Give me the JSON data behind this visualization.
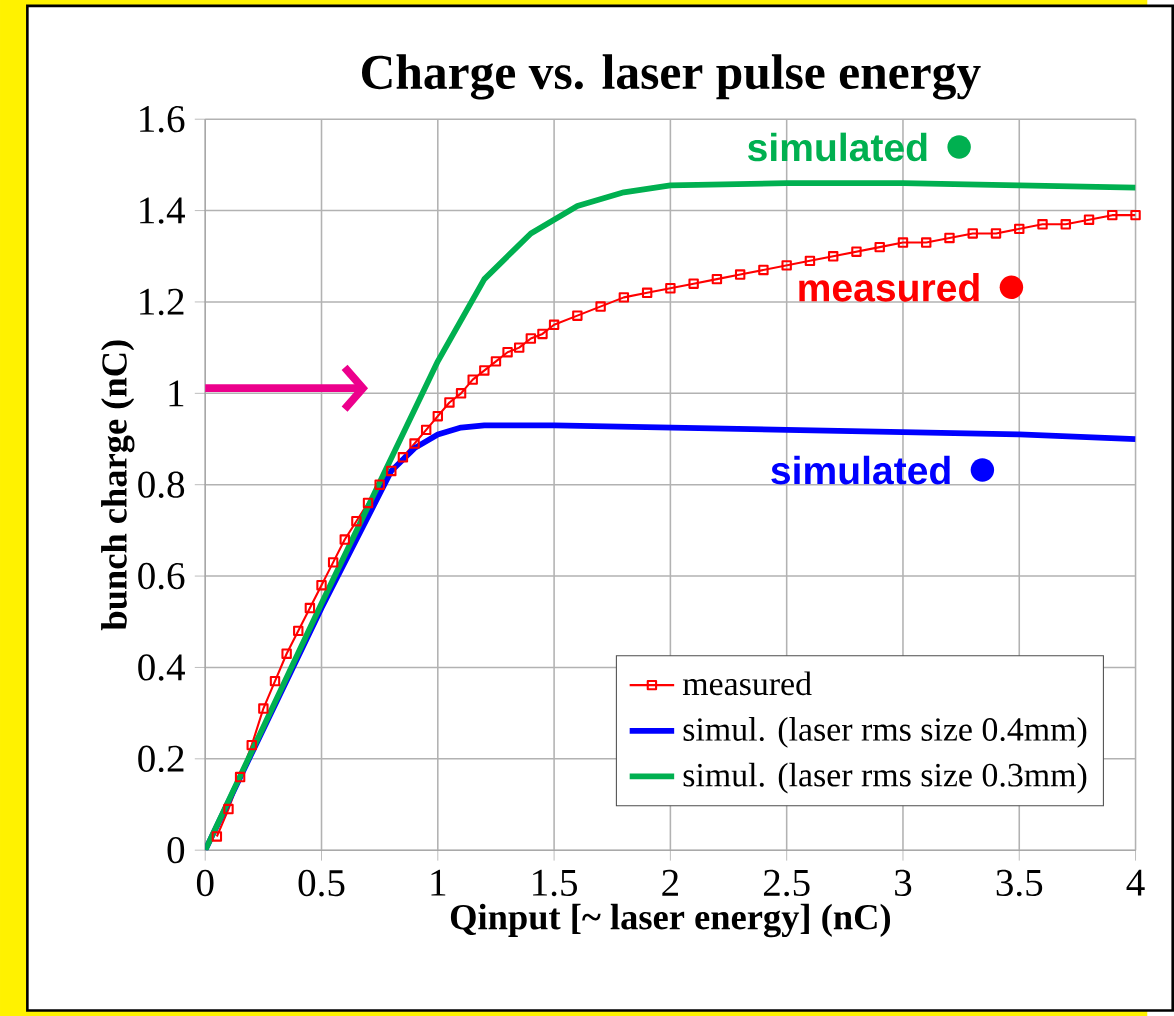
{
  "chart_data": {
    "type": "line",
    "title": "Charge vs. laser pulse energy",
    "xlabel": "Qinput [~ laser energy] (nC)",
    "ylabel": "bunch charge (nC)",
    "xlim": [
      0,
      4
    ],
    "ylim": [
      0,
      1.6
    ],
    "xticks": [
      0,
      0.5,
      1,
      1.5,
      2,
      2.5,
      3,
      3.5,
      4
    ],
    "yticks": [
      0,
      0.2,
      0.4,
      0.6,
      0.8,
      1,
      1.2,
      1.4,
      1.6
    ],
    "grid": true,
    "legend": "bottom right",
    "series": [
      {
        "name": "measured",
        "color": "#ff0000",
        "marker": "square",
        "x": [
          0.05,
          0.1,
          0.15,
          0.2,
          0.25,
          0.3,
          0.35,
          0.4,
          0.45,
          0.5,
          0.55,
          0.6,
          0.65,
          0.7,
          0.75,
          0.8,
          0.85,
          0.9,
          0.95,
          1.0,
          1.05,
          1.1,
          1.15,
          1.2,
          1.25,
          1.3,
          1.35,
          1.4,
          1.45,
          1.5,
          1.6,
          1.7,
          1.8,
          1.9,
          2.0,
          2.1,
          2.2,
          2.3,
          2.4,
          2.5,
          2.6,
          2.7,
          2.8,
          2.9,
          3.0,
          3.1,
          3.2,
          3.3,
          3.4,
          3.5,
          3.6,
          3.7,
          3.8,
          3.9,
          4.0
        ],
        "values": [
          0.03,
          0.09,
          0.16,
          0.23,
          0.31,
          0.37,
          0.43,
          0.48,
          0.53,
          0.58,
          0.63,
          0.68,
          0.72,
          0.76,
          0.8,
          0.83,
          0.86,
          0.89,
          0.92,
          0.95,
          0.98,
          1.0,
          1.03,
          1.05,
          1.07,
          1.09,
          1.1,
          1.12,
          1.13,
          1.15,
          1.17,
          1.19,
          1.21,
          1.22,
          1.23,
          1.24,
          1.25,
          1.26,
          1.27,
          1.28,
          1.29,
          1.3,
          1.31,
          1.32,
          1.33,
          1.33,
          1.34,
          1.35,
          1.35,
          1.36,
          1.37,
          1.37,
          1.38,
          1.39,
          1.39
        ]
      },
      {
        "name": "simul. (laser rms size 0.4mm)",
        "color": "#0000ff",
        "x": [
          0,
          0.5,
          0.8,
          0.9,
          1.0,
          1.1,
          1.2,
          1.3,
          1.5,
          2.0,
          2.5,
          3.0,
          3.5,
          4.0
        ],
        "values": [
          0,
          0.53,
          0.83,
          0.88,
          0.91,
          0.925,
          0.93,
          0.93,
          0.93,
          0.925,
          0.92,
          0.915,
          0.91,
          0.9
        ]
      },
      {
        "name": "simul. (laser rms size 0.3mm)",
        "color": "#00b050",
        "x": [
          0,
          0.5,
          1.0,
          1.2,
          1.4,
          1.6,
          1.8,
          2.0,
          2.5,
          3.0,
          3.5,
          4.0
        ],
        "values": [
          0,
          0.54,
          1.07,
          1.25,
          1.35,
          1.41,
          1.44,
          1.455,
          1.46,
          1.46,
          1.455,
          1.45
        ]
      }
    ],
    "annotations": [
      "simulated",
      "measured",
      "simulated"
    ]
  }
}
